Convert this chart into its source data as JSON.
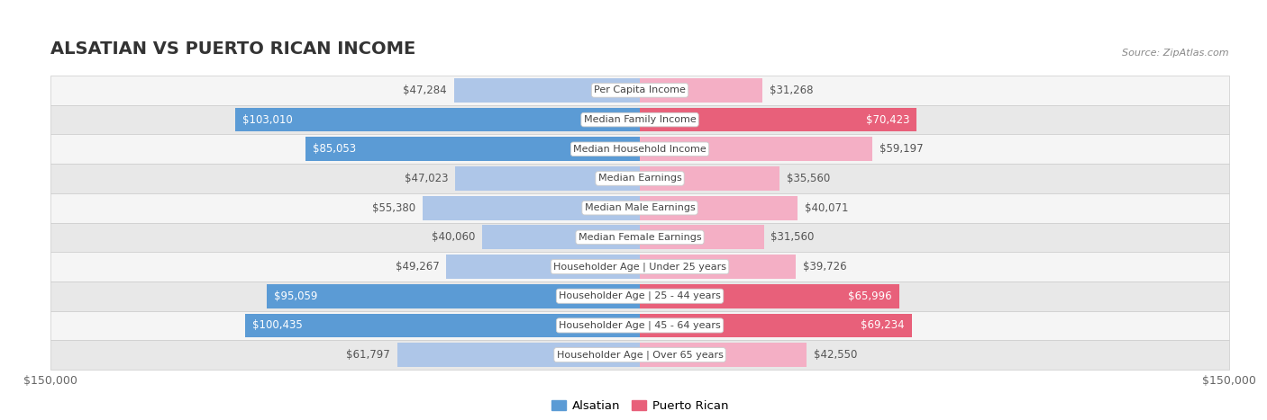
{
  "title": "ALSATIAN VS PUERTO RICAN INCOME",
  "source": "Source: ZipAtlas.com",
  "categories": [
    "Per Capita Income",
    "Median Family Income",
    "Median Household Income",
    "Median Earnings",
    "Median Male Earnings",
    "Median Female Earnings",
    "Householder Age | Under 25 years",
    "Householder Age | 25 - 44 years",
    "Householder Age | 45 - 64 years",
    "Householder Age | Over 65 years"
  ],
  "alsatian_values": [
    47284,
    103010,
    85053,
    47023,
    55380,
    40060,
    49267,
    95059,
    100435,
    61797
  ],
  "puerto_rican_values": [
    31268,
    70423,
    59197,
    35560,
    40071,
    31560,
    39726,
    65996,
    69234,
    42550
  ],
  "alsatian_labels": [
    "$47,284",
    "$103,010",
    "$85,053",
    "$47,023",
    "$55,380",
    "$40,060",
    "$49,267",
    "$95,059",
    "$100,435",
    "$61,797"
  ],
  "puerto_rican_labels": [
    "$31,268",
    "$70,423",
    "$59,197",
    "$35,560",
    "$40,071",
    "$31,560",
    "$39,726",
    "$65,996",
    "$69,234",
    "$42,550"
  ],
  "max_value": 150000,
  "alsatian_color_light": "#aec6e8",
  "alsatian_color_dark": "#5b9bd5",
  "puerto_rican_color_light": "#f4afc5",
  "puerto_rican_color_dark": "#e8607a",
  "row_bg_odd": "#f5f5f5",
  "row_bg_even": "#e8e8e8",
  "row_separator": "#cccccc",
  "label_bg_color": "#ffffff",
  "title_color": "#333333",
  "value_color_outside": "#555555",
  "value_color_inside": "#ffffff",
  "axis_label_color": "#666666",
  "bar_height": 0.82,
  "alsatian_dark_threshold": 80000,
  "puerto_rican_dark_threshold": 60000,
  "legend_alsatian": "Alsatian",
  "legend_puerto_rican": "Puerto Rican",
  "title_fontsize": 14,
  "source_fontsize": 8,
  "value_fontsize": 8.5,
  "category_fontsize": 8,
  "axis_fontsize": 9
}
